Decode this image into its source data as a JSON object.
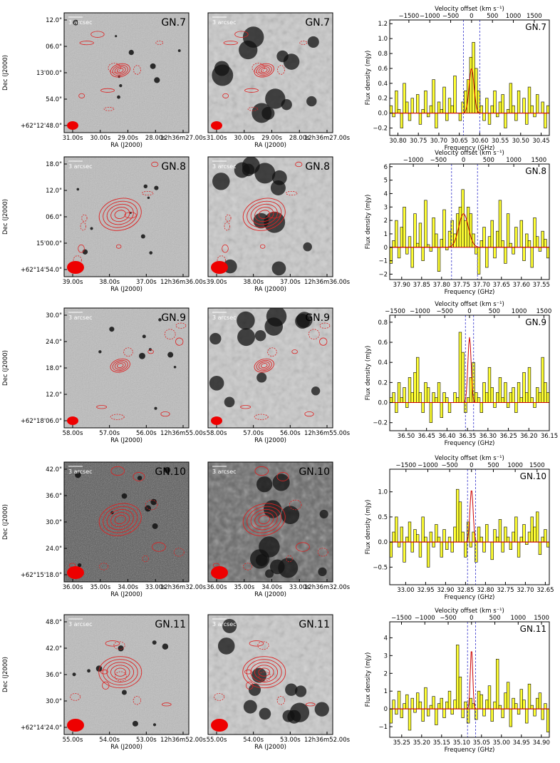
{
  "common": {
    "ra_label": "RA (J2000)",
    "dec_label": "Dec (J2000)",
    "scale_label": "3 arcsec",
    "flux_label": "Flux density (mJy)",
    "freq_label": "Frequency (GHz)",
    "vel_label": "Velocity offset (km s⁻¹)",
    "vel_ticks": [
      -1500,
      -1000,
      -500,
      0,
      500,
      1000,
      1500
    ],
    "colors": {
      "contour": "#dd2222",
      "beam": "#ee0000",
      "spectrum_fill": "#ffff33",
      "spectrum_line": "#000000",
      "fit_line": "#cc0000",
      "guide_line": "#3333cc"
    }
  },
  "panels": [
    {
      "name": "GN.7",
      "image_style": "light",
      "dec_ticks": [
        "12.0\"",
        "06.0\"",
        "13'00.0\"",
        "54.0\"",
        "+62°12'48.0\""
      ],
      "ra_ticks": [
        "31.00s",
        "30.00s",
        "29.00s",
        "28.00s",
        "12h36m27.00s"
      ],
      "chart_data": {
        "type": "bar",
        "title": "GN.7",
        "xlabel": "Frequency (GHz)",
        "ylabel": "Flux density (mJy)",
        "x_ticks": [
          30.8,
          30.75,
          30.7,
          30.65,
          30.6,
          30.55,
          30.5,
          30.45
        ],
        "x_tick_labels": [
          "30.80",
          "30.75",
          "30.70",
          "30.65",
          "30.60",
          "30.55",
          "30.50",
          "30.45"
        ],
        "xlim": [
          30.82,
          30.43
        ],
        "y_ticks": [
          -0.2,
          0.0,
          0.2,
          0.4,
          0.6,
          0.8,
          1.0,
          1.2
        ],
        "y_tick_labels": [
          "−0.2",
          "0.0",
          "0.2",
          "0.4",
          "0.6",
          "0.8",
          "1.0",
          "1.2"
        ],
        "ylim": [
          -0.3,
          1.25
        ],
        "line_center_ghz": 30.62,
        "fit": {
          "amplitude": 0.6,
          "center": 30.62,
          "sigma": 0.006
        },
        "guides": [
          30.64,
          30.6
        ],
        "values": [
          0.1,
          -0.05,
          0.3,
          0.05,
          -0.2,
          0.4,
          0.15,
          -0.1,
          0.2,
          0.0,
          0.25,
          -0.15,
          0.05,
          0.3,
          -0.05,
          0.1,
          0.45,
          -0.2,
          0.15,
          0.05,
          0.35,
          -0.1,
          0.2,
          0.1,
          0.5,
          0.0,
          -0.1,
          0.15,
          0.3,
          0.45,
          0.75,
          0.95,
          0.6,
          0.3,
          0.1,
          -0.1,
          0.2,
          -0.15,
          0.1,
          0.3,
          -0.05,
          0.15,
          0.25,
          -0.2,
          0.05,
          0.4,
          0.1,
          -0.1,
          0.3,
          0.0,
          0.2,
          -0.15,
          0.35,
          0.1,
          -0.05,
          0.25,
          0.0,
          0.15,
          -0.2,
          0.1
        ]
      }
    },
    {
      "name": "GN.8",
      "image_style": "light",
      "dec_ticks": [
        "18.0\"",
        "12.0\"",
        "06.0\"",
        "15'00.0\"",
        "+62°14'54.0\""
      ],
      "ra_ticks": [
        "39.00s",
        "38.00s",
        "37.00s",
        "12h36m36.00s"
      ],
      "chart_data": {
        "type": "bar",
        "title": "GN.8",
        "xlabel": "Frequency (GHz)",
        "ylabel": "Flux density (mJy)",
        "x_ticks": [
          37.9,
          37.85,
          37.8,
          37.75,
          37.7,
          37.65,
          37.6,
          37.55
        ],
        "x_tick_labels": [
          "37.90",
          "37.85",
          "37.80",
          "37.75",
          "37.70",
          "37.65",
          "37.60",
          "37.55"
        ],
        "xlim": [
          37.93,
          37.53
        ],
        "y_ticks": [
          -2,
          -1,
          0,
          1,
          2,
          3,
          4,
          5,
          6
        ],
        "y_tick_labels": [
          "−2",
          "−1",
          "0",
          "1",
          "2",
          "3",
          "4",
          "5",
          "6"
        ],
        "ylim": [
          -2.4,
          6.2
        ],
        "line_center_ghz": 37.745,
        "fit": {
          "amplitude": 2.5,
          "center": 37.745,
          "sigma": 0.012
        },
        "guides": [
          37.775,
          37.71
        ],
        "values": [
          -1.2,
          0.5,
          2.0,
          -0.8,
          1.5,
          3.0,
          -0.5,
          0.8,
          -1.5,
          2.5,
          0.3,
          1.8,
          -1.0,
          3.5,
          0.2,
          -0.3,
          2.2,
          1.0,
          -1.8,
          0.6,
          2.8,
          -0.2,
          1.2,
          2.0,
          1.0,
          2.5,
          3.0,
          4.3,
          2.0,
          3.0,
          2.5,
          1.0,
          -0.5,
          -2.0,
          0.5,
          1.5,
          -1.5,
          0.8,
          2.0,
          -0.8,
          1.2,
          3.5,
          0.5,
          -1.2,
          2.5,
          0.3,
          -0.5,
          1.5,
          0.0,
          2.0,
          -1.0,
          1.0,
          0.5,
          -1.5,
          2.2,
          0.8,
          -0.3,
          1.2,
          0.6,
          -0.8
        ]
      }
    },
    {
      "name": "GN.9",
      "image_style": "light",
      "dec_ticks": [
        "30.0\"",
        "24.0\"",
        "18.0\"",
        "12.0\"",
        "+62°18'06.0\""
      ],
      "ra_ticks": [
        "58.00s",
        "57.00s",
        "56.00s",
        "12h36m55.00s"
      ],
      "chart_data": {
        "type": "bar",
        "title": "GN.9",
        "xlabel": "Frequency (GHz)",
        "ylabel": "Flux density (mJy)",
        "x_ticks": [
          36.5,
          36.45,
          36.4,
          36.35,
          36.3,
          36.25,
          36.2,
          36.15
        ],
        "x_tick_labels": [
          "36.50",
          "36.45",
          "36.40",
          "36.35",
          "36.30",
          "36.25",
          "36.20",
          "36.15"
        ],
        "xlim": [
          36.54,
          36.15
        ],
        "y_ticks": [
          -0.2,
          0.0,
          0.2,
          0.4,
          0.6,
          0.8
        ],
        "y_tick_labels": [
          "−0.2",
          "0.0",
          "0.2",
          "0.4",
          "0.6",
          "0.8"
        ],
        "ylim": [
          -0.28,
          0.87
        ],
        "line_center_ghz": 36.345,
        "fit": {
          "amplitude": 0.65,
          "center": 36.345,
          "sigma": 0.004
        },
        "guides": [
          36.355,
          36.335
        ],
        "values": [
          0.05,
          0.1,
          -0.1,
          0.2,
          0.05,
          0.15,
          -0.05,
          0.25,
          0.1,
          0.3,
          0.45,
          0.1,
          -0.1,
          0.2,
          0.15,
          -0.2,
          0.1,
          0.05,
          0.2,
          -0.15,
          0.1,
          0.05,
          -0.1,
          0.0,
          0.1,
          0.05,
          0.7,
          0.5,
          -0.1,
          0.05,
          0.25,
          0.4,
          0.1,
          0.05,
          -0.1,
          0.2,
          0.1,
          0.35,
          0.15,
          -0.05,
          0.1,
          0.25,
          0.05,
          0.2,
          -0.05,
          0.1,
          0.15,
          -0.1,
          0.2,
          0.05,
          0.3,
          0.1,
          0.35,
          0.05,
          -0.05,
          0.15,
          0.1,
          0.45,
          0.2,
          0.1
        ]
      }
    },
    {
      "name": "GN.10",
      "image_style": "dark",
      "dec_ticks": [
        "42.0\"",
        "36.0\"",
        "30.0\"",
        "24.0\"",
        "+62°15'18.0\""
      ],
      "ra_ticks": [
        "36.00s",
        "35.00s",
        "34.00s",
        "33.00s",
        "12h36m32.00s"
      ],
      "chart_data": {
        "type": "bar",
        "title": "GN.10",
        "xlabel": "Frequency (GHz)",
        "ylabel": "Flux density (mJy)",
        "x_ticks": [
          33.0,
          32.95,
          32.9,
          32.85,
          32.8,
          32.75,
          32.7,
          32.65
        ],
        "x_tick_labels": [
          "33.00",
          "32.95",
          "32.90",
          "32.85",
          "32.80",
          "32.75",
          "32.70",
          "32.65"
        ],
        "xlim": [
          33.04,
          32.64
        ],
        "y_ticks": [
          -0.5,
          0.0,
          0.5,
          1.0
        ],
        "y_tick_labels": [
          "−0.5",
          "0.0",
          "0.5",
          "1.0"
        ],
        "ylim": [
          -0.85,
          1.45
        ],
        "line_center_ghz": 32.835,
        "fit": {
          "amplitude": 1.05,
          "center": 32.835,
          "sigma": 0.004
        },
        "guides": [
          32.845,
          32.825
        ],
        "values": [
          -0.3,
          0.2,
          0.5,
          -0.1,
          0.3,
          -0.4,
          0.1,
          0.4,
          -0.2,
          0.25,
          0.15,
          -0.3,
          0.5,
          0.1,
          -0.5,
          0.2,
          -0.1,
          0.35,
          0.1,
          -0.3,
          0.25,
          -0.15,
          0.1,
          -0.2,
          0.3,
          1.05,
          0.8,
          0.2,
          -0.3,
          0.4,
          -0.1,
          0.2,
          -0.4,
          0.3,
          0.1,
          -0.2,
          0.35,
          0.0,
          -0.35,
          0.25,
          0.1,
          0.45,
          -0.2,
          0.3,
          0.1,
          -0.15,
          0.2,
          0.5,
          -0.3,
          0.1,
          0.35,
          -0.05,
          0.2,
          0.5,
          0.3,
          0.6,
          -0.25,
          0.1,
          0.25,
          -0.1
        ]
      }
    },
    {
      "name": "GN.11",
      "image_style": "light",
      "dec_ticks": [
        "48.0\"",
        "42.0\"",
        "36.0\"",
        "30.0\"",
        "+62°14'24.0\""
      ],
      "ra_ticks": [
        "55.00s",
        "54.00s",
        "53.00s",
        "12h36m52.00s"
      ],
      "chart_data": {
        "type": "bar",
        "title": "GN.11",
        "xlabel": "Frequency (GHz)",
        "ylabel": "Flux density (mJy)",
        "x_ticks": [
          35.25,
          35.2,
          35.15,
          35.1,
          35.05,
          35.0,
          34.95,
          34.9
        ],
        "x_tick_labels": [
          "35.25",
          "35.20",
          "35.15",
          "35.10",
          "35.05",
          "35.00",
          "34.95",
          "34.90"
        ],
        "xlim": [
          35.28,
          34.88
        ],
        "y_ticks": [
          -1,
          0,
          1,
          2,
          3,
          4
        ],
        "y_tick_labels": [
          "−1",
          "0",
          "1",
          "2",
          "3",
          "4"
        ],
        "ylim": [
          -1.6,
          4.9
        ],
        "line_center_ghz": 35.075,
        "fit": {
          "amplitude": 3.4,
          "center": 35.075,
          "sigma": 0.003
        },
        "guides": [
          35.085,
          35.065
        ],
        "values": [
          -0.8,
          0.5,
          -0.3,
          1.0,
          -0.5,
          0.3,
          0.8,
          -1.2,
          0.6,
          -0.2,
          0.9,
          0.4,
          -0.7,
          1.2,
          -0.4,
          0.2,
          0.7,
          -0.9,
          0.3,
          0.6,
          -0.5,
          0.4,
          1.0,
          -0.3,
          0.5,
          3.6,
          1.8,
          -0.5,
          0.4,
          -0.8,
          0.6,
          0.3,
          -0.6,
          1.0,
          0.8,
          -0.4,
          0.5,
          1.3,
          -0.7,
          0.4,
          2.8,
          0.2,
          -0.5,
          0.9,
          1.5,
          -1.0,
          0.6,
          0.3,
          -0.3,
          1.1,
          0.5,
          -0.8,
          1.4,
          0.2,
          -0.4,
          0.6,
          0.9,
          -0.6,
          0.3,
          -1.3
        ]
      }
    }
  ]
}
